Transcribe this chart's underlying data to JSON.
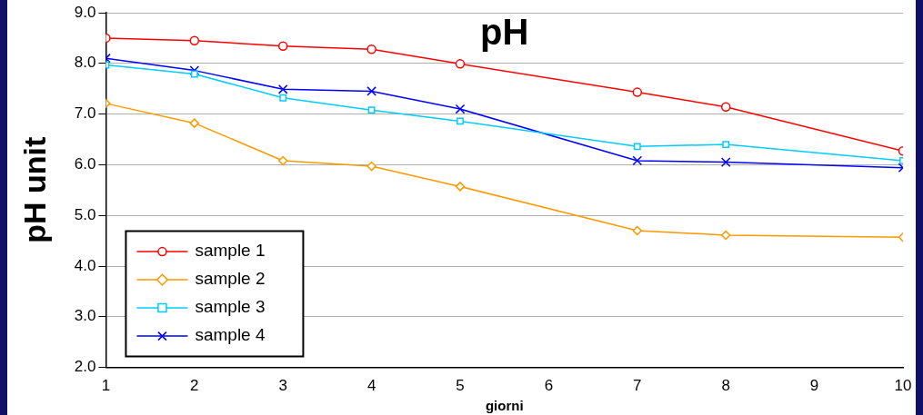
{
  "chart_data": {
    "type": "line",
    "title": "pH",
    "xlabel": "giorni",
    "ylabel": "pH unit",
    "x": [
      1,
      2,
      3,
      4,
      5,
      7,
      8,
      10
    ],
    "xlim": [
      1,
      10
    ],
    "xticks": [
      1,
      2,
      3,
      4,
      5,
      6,
      7,
      8,
      9,
      10
    ],
    "ylim": [
      2,
      9
    ],
    "yticks": [
      {
        "value": 2,
        "label": "2.0"
      },
      {
        "value": 3,
        "label": "3.0"
      },
      {
        "value": 4,
        "label": "4.0"
      },
      {
        "value": 5,
        "label": "5.0"
      },
      {
        "value": 6,
        "label": "6.0"
      },
      {
        "value": 7,
        "label": "7.0"
      },
      {
        "value": 8,
        "label": "8.0"
      },
      {
        "value": 9,
        "label": "9.0"
      }
    ],
    "grid": "y",
    "legend": "bottom left",
    "series": [
      {
        "name": "sample 1",
        "color": "#ff0000",
        "marker": "circle",
        "values": [
          8.5,
          8.45,
          8.34,
          8.28,
          7.99,
          7.43,
          7.14,
          6.27
        ]
      },
      {
        "name": "sample 2",
        "color": "#ff9900",
        "marker": "diamond",
        "values": [
          7.21,
          6.82,
          6.08,
          5.97,
          5.57,
          4.7,
          4.61,
          4.57
        ]
      },
      {
        "name": "sample 3",
        "color": "#00ccff",
        "marker": "square",
        "values": [
          7.97,
          7.79,
          7.32,
          7.08,
          6.86,
          6.36,
          6.4,
          6.08
        ]
      },
      {
        "name": "sample 4",
        "color": "#0000ff",
        "marker": "cross",
        "values": [
          8.1,
          7.86,
          7.49,
          7.45,
          7.1,
          6.08,
          6.05,
          5.94
        ]
      }
    ]
  }
}
